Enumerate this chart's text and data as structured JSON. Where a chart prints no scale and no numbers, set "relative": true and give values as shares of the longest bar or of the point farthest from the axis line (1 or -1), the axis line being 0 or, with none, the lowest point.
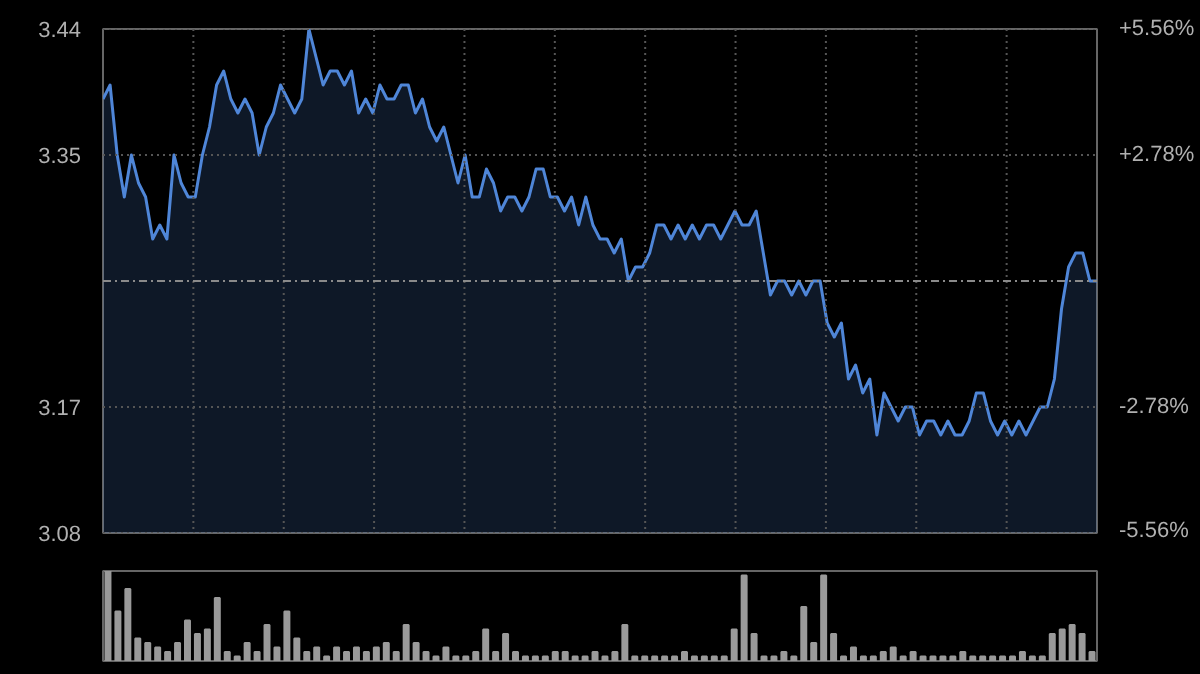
{
  "chart_data": [
    {
      "type": "area",
      "tick_labels": "y",
      "grid": true,
      "ylim": [
        3.08,
        3.44
      ],
      "yticks": [
        3.08,
        3.17,
        3.35,
        3.44
      ],
      "y2lim": [
        -5.56,
        5.56
      ],
      "y2ticks": [
        {
          "value": -5.56,
          "label": "-5.56%"
        },
        {
          "value": -2.78,
          "label": "-2.78%"
        },
        {
          "value": 2.78,
          "label": "+2.78%"
        },
        {
          "value": 5.56,
          "label": "+5.56%"
        }
      ],
      "ref_lines": [
        {
          "axis": "y",
          "value": 3.26,
          "line_style": "dashed",
          "color": "#8a8a8a"
        }
      ],
      "categories": [
        null,
        null,
        null,
        null,
        null,
        null,
        null,
        null,
        null,
        null,
        null,
        null,
        null,
        null,
        null,
        null,
        null,
        null,
        null,
        null,
        null,
        null,
        null,
        null,
        null,
        null,
        null,
        null,
        null,
        null,
        null,
        null,
        null,
        null,
        null,
        null,
        null,
        null,
        null,
        null,
        null,
        null,
        null,
        null,
        null,
        null,
        null,
        null,
        null,
        null,
        null,
        null,
        null,
        null,
        null,
        null,
        null,
        null,
        null,
        null,
        null,
        null,
        null,
        null,
        null,
        null,
        null,
        null,
        null,
        null,
        null,
        null,
        null,
        null,
        null,
        null,
        null,
        null,
        null,
        null,
        null,
        null,
        null,
        null,
        null,
        null,
        null,
        null,
        null,
        null,
        null,
        null,
        null,
        null,
        null,
        null,
        null,
        null,
        null,
        null,
        null,
        null,
        null,
        null,
        null,
        null,
        null,
        null,
        null,
        null,
        null,
        null,
        null,
        null,
        null,
        null,
        null,
        null,
        null,
        null,
        null,
        null,
        null,
        null,
        null,
        null,
        null,
        null,
        null,
        null,
        null,
        null,
        null,
        null,
        null,
        null,
        null,
        null,
        null,
        null,
        null
      ],
      "series": [
        {
          "color": "#4f86d8",
          "values": [
            3.39,
            3.4,
            3.35,
            3.32,
            3.35,
            3.33,
            3.32,
            3.29,
            3.3,
            3.29,
            3.35,
            3.33,
            3.32,
            3.32,
            3.35,
            3.37,
            3.4,
            3.41,
            3.39,
            3.38,
            3.39,
            3.38,
            3.35,
            3.37,
            3.38,
            3.4,
            3.39,
            3.38,
            3.39,
            3.44,
            3.42,
            3.4,
            3.41,
            3.41,
            3.4,
            3.41,
            3.38,
            3.39,
            3.38,
            3.4,
            3.39,
            3.39,
            3.4,
            3.4,
            3.38,
            3.39,
            3.37,
            3.36,
            3.37,
            3.35,
            3.33,
            3.35,
            3.32,
            3.32,
            3.34,
            3.33,
            3.31,
            3.32,
            3.32,
            3.31,
            3.32,
            3.34,
            3.34,
            3.32,
            3.32,
            3.31,
            3.32,
            3.3,
            3.32,
            3.3,
            3.29,
            3.29,
            3.28,
            3.29,
            3.26,
            3.27,
            3.27,
            3.28,
            3.3,
            3.3,
            3.29,
            3.3,
            3.29,
            3.3,
            3.29,
            3.3,
            3.3,
            3.29,
            3.3,
            3.31,
            3.3,
            3.3,
            3.31,
            3.28,
            3.25,
            3.26,
            3.26,
            3.25,
            3.26,
            3.25,
            3.26,
            3.26,
            3.23,
            3.22,
            3.23,
            3.19,
            3.2,
            3.18,
            3.19,
            3.15,
            3.18,
            3.17,
            3.16,
            3.17,
            3.17,
            3.15,
            3.16,
            3.16,
            3.15,
            3.16,
            3.15,
            3.15,
            3.16,
            3.18,
            3.18,
            3.16,
            3.15,
            3.16,
            3.15,
            3.16,
            3.15,
            3.16,
            3.17,
            3.17,
            3.19,
            3.24,
            3.27,
            3.28,
            3.28,
            3.26,
            3.26
          ]
        }
      ]
    },
    {
      "type": "bar",
      "relative": true,
      "tick_labels": false,
      "categories": [
        null,
        null,
        null,
        null,
        null,
        null,
        null,
        null,
        null,
        null,
        null,
        null,
        null,
        null,
        null,
        null,
        null,
        null,
        null,
        null,
        null,
        null,
        null,
        null,
        null,
        null,
        null,
        null,
        null,
        null,
        null,
        null,
        null,
        null,
        null,
        null,
        null,
        null,
        null,
        null,
        null,
        null,
        null,
        null,
        null,
        null,
        null,
        null,
        null,
        null,
        null,
        null,
        null,
        null,
        null,
        null,
        null,
        null,
        null,
        null,
        null,
        null,
        null,
        null,
        null,
        null,
        null,
        null,
        null,
        null,
        null,
        null,
        null,
        null,
        null,
        null,
        null,
        null,
        null,
        null,
        null,
        null,
        null,
        null,
        null,
        null,
        null,
        null,
        null,
        null,
        null,
        null,
        null,
        null,
        null,
        null,
        null,
        null,
        null,
        null
      ],
      "series": [
        {
          "color": "#9a9a9a",
          "values": [
            1,
            0.55,
            0.8,
            0.25,
            0.2,
            0.15,
            0.1,
            0.2,
            0.45,
            0.3,
            0.35,
            0.7,
            0.1,
            0.05,
            0.2,
            0.1,
            0.4,
            0.15,
            0.55,
            0.25,
            0.1,
            0.15,
            0.05,
            0.15,
            0.1,
            0.15,
            0.1,
            0.15,
            0.2,
            0.1,
            0.4,
            0.2,
            0.1,
            0.05,
            0.15,
            0.05,
            0.05,
            0.1,
            0.35,
            0.1,
            0.3,
            0.1,
            0.05,
            0.05,
            0.05,
            0.1,
            0.1,
            0.05,
            0.05,
            0.1,
            0.05,
            0.1,
            0.4,
            0.05,
            0.05,
            0.05,
            0.05,
            0.05,
            0.1,
            0.05,
            0.05,
            0.05,
            0.05,
            0.35,
            0.95,
            0.3,
            0.05,
            0.05,
            0.1,
            0.05,
            0.6,
            0.2,
            0.95,
            0.3,
            0.05,
            0.15,
            0.05,
            0.05,
            0.1,
            0.15,
            0.05,
            0.1,
            0.05,
            0.05,
            0.05,
            0.05,
            0.1,
            0.05,
            0.05,
            0.05,
            0.05,
            0.05,
            0.1,
            0.05,
            0.05,
            0.3,
            0.35,
            0.4,
            0.3,
            0.1
          ]
        }
      ]
    }
  ]
}
